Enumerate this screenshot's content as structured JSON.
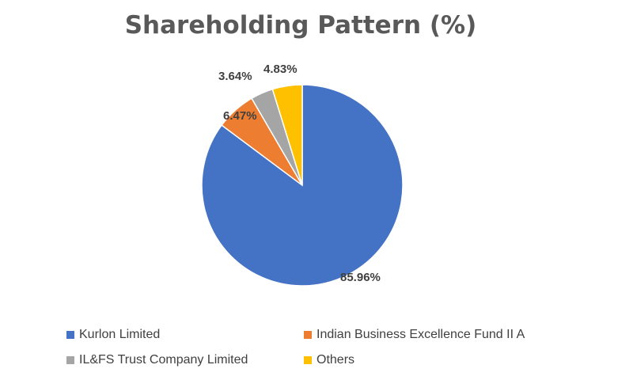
{
  "chart_data": {
    "type": "pie",
    "title": "Shareholding Pattern (%)",
    "slices": [
      {
        "label": "Kurlon Limited",
        "value": 85.96,
        "display": "85.96%",
        "color": "#4472C4"
      },
      {
        "label": "Indian Business Excellence Fund II A",
        "value": 6.47,
        "display": "6.47%",
        "color": "#ED7D31"
      },
      {
        "label": "IL&FS Trust Company Limited",
        "value": 3.64,
        "display": "3.64%",
        "color": "#A5A5A5"
      },
      {
        "label": "Others",
        "value": 4.83,
        "display": "4.83%",
        "color": "#FFC000"
      }
    ],
    "legend_position": "bottom"
  }
}
